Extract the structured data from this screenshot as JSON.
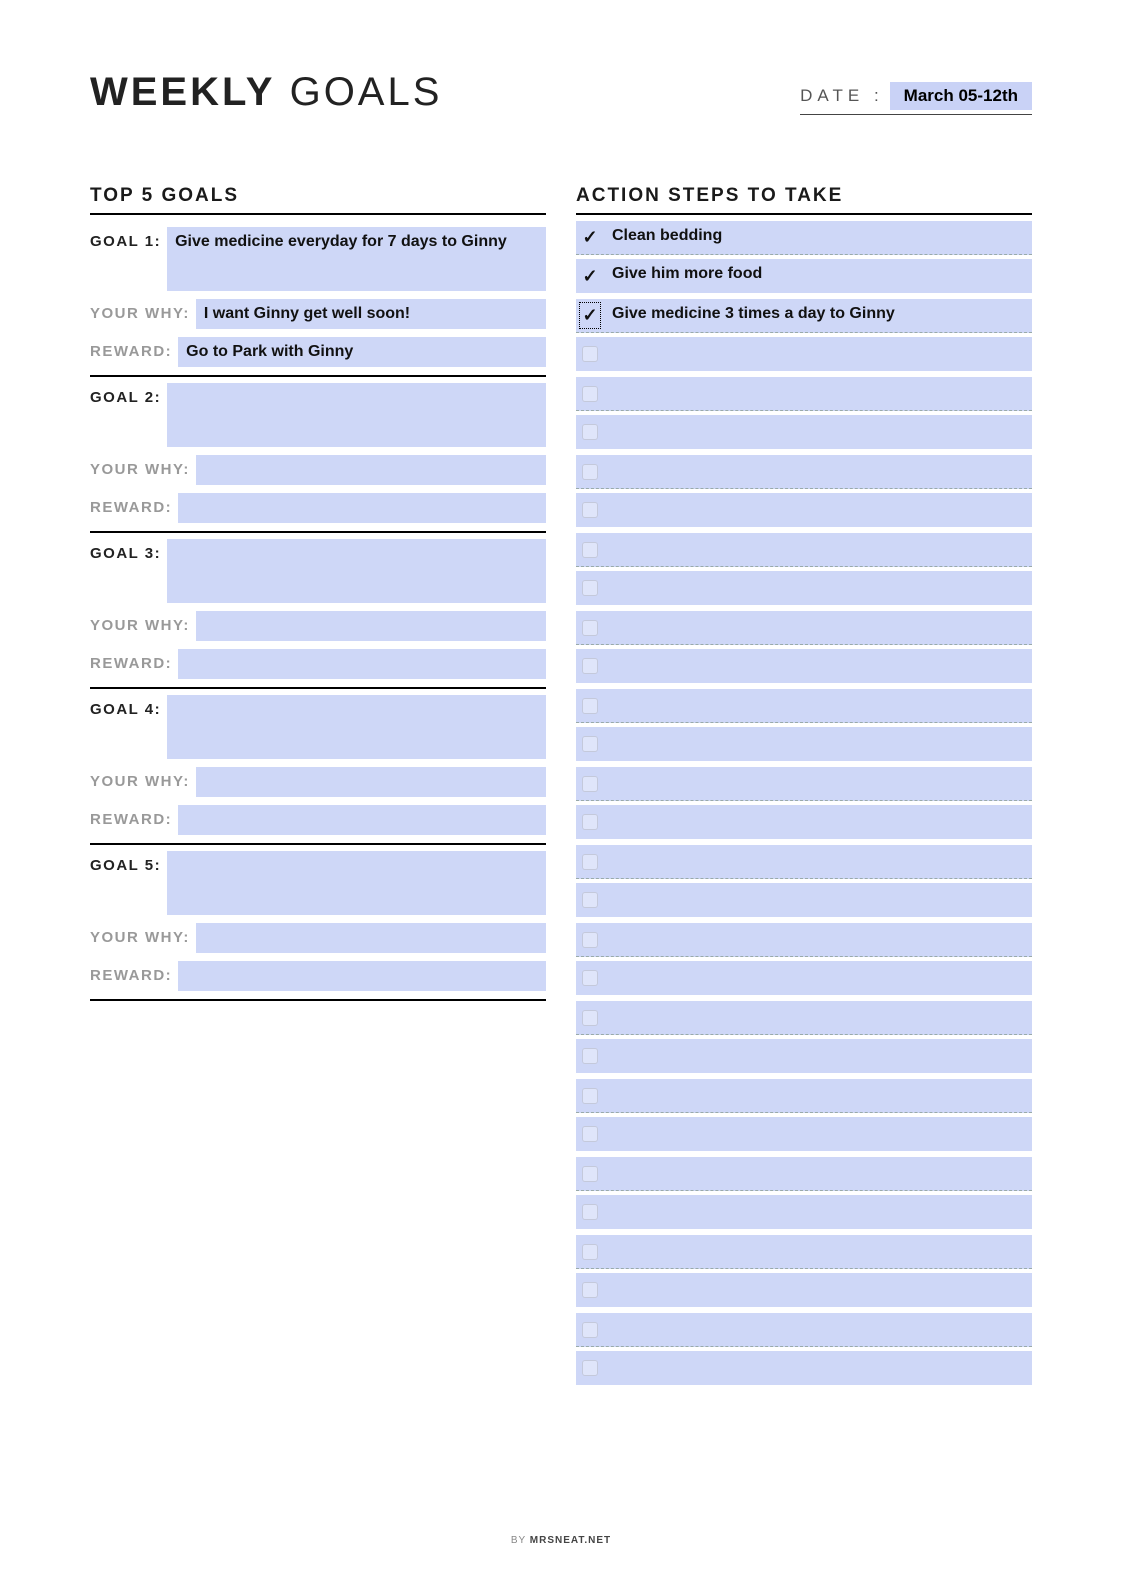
{
  "colors": {
    "fill": "#ced7f7",
    "date_fill": "#c9d2f6",
    "background": "#ffffff",
    "rule": "#000000",
    "dashed": "#99aaaa",
    "label_muted": "#999999"
  },
  "header": {
    "title_bold": "WEEKLY",
    "title_thin": "GOALS",
    "date_label": "DATE :",
    "date_value": "March 05-12th"
  },
  "left_heading": "TOP 5 GOALS",
  "right_heading": "ACTION STEPS TO TAKE",
  "labels": {
    "goal_prefix": "GOAL",
    "why": "YOUR WHY:",
    "reward": "REWARD:"
  },
  "goals": [
    {
      "n": "1",
      "goal": "Give medicine everyday for 7 days to Ginny",
      "why": "I want Ginny get well soon!",
      "reward": "Go to Park with Ginny"
    },
    {
      "n": "2",
      "goal": "",
      "why": "",
      "reward": ""
    },
    {
      "n": "3",
      "goal": "",
      "why": "",
      "reward": ""
    },
    {
      "n": "4",
      "goal": "",
      "why": "",
      "reward": ""
    },
    {
      "n": "5",
      "goal": "",
      "why": "",
      "reward": ""
    }
  ],
  "action_steps": [
    {
      "checked": true,
      "selected": false,
      "text": "Clean bedding"
    },
    {
      "checked": true,
      "selected": false,
      "text": "Give him more food"
    },
    {
      "checked": true,
      "selected": true,
      "text": "Give medicine 3 times a day to Ginny"
    },
    {
      "checked": false,
      "selected": false,
      "text": ""
    },
    {
      "checked": false,
      "selected": false,
      "text": ""
    },
    {
      "checked": false,
      "selected": false,
      "text": ""
    },
    {
      "checked": false,
      "selected": false,
      "text": ""
    },
    {
      "checked": false,
      "selected": false,
      "text": ""
    },
    {
      "checked": false,
      "selected": false,
      "text": ""
    },
    {
      "checked": false,
      "selected": false,
      "text": ""
    },
    {
      "checked": false,
      "selected": false,
      "text": ""
    },
    {
      "checked": false,
      "selected": false,
      "text": ""
    },
    {
      "checked": false,
      "selected": false,
      "text": ""
    },
    {
      "checked": false,
      "selected": false,
      "text": ""
    },
    {
      "checked": false,
      "selected": false,
      "text": ""
    },
    {
      "checked": false,
      "selected": false,
      "text": ""
    },
    {
      "checked": false,
      "selected": false,
      "text": ""
    },
    {
      "checked": false,
      "selected": false,
      "text": ""
    },
    {
      "checked": false,
      "selected": false,
      "text": ""
    },
    {
      "checked": false,
      "selected": false,
      "text": ""
    },
    {
      "checked": false,
      "selected": false,
      "text": ""
    },
    {
      "checked": false,
      "selected": false,
      "text": ""
    },
    {
      "checked": false,
      "selected": false,
      "text": ""
    },
    {
      "checked": false,
      "selected": false,
      "text": ""
    },
    {
      "checked": false,
      "selected": false,
      "text": ""
    },
    {
      "checked": false,
      "selected": false,
      "text": ""
    },
    {
      "checked": false,
      "selected": false,
      "text": ""
    },
    {
      "checked": false,
      "selected": false,
      "text": ""
    },
    {
      "checked": false,
      "selected": false,
      "text": ""
    },
    {
      "checked": false,
      "selected": false,
      "text": ""
    }
  ],
  "footer": {
    "by": "BY",
    "brand": "MRSNEAT.NET"
  }
}
